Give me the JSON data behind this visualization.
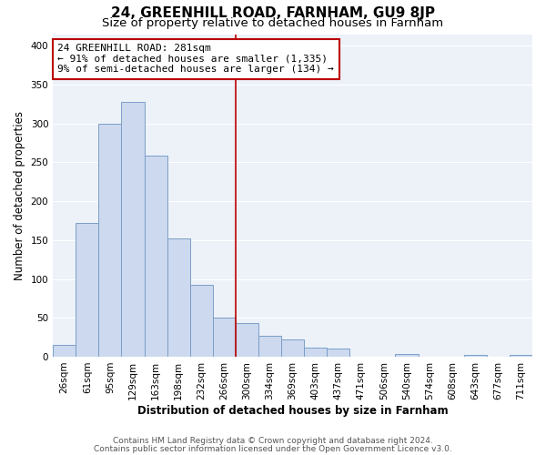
{
  "title": "24, GREENHILL ROAD, FARNHAM, GU9 8JP",
  "subtitle": "Size of property relative to detached houses in Farnham",
  "xlabel": "Distribution of detached houses by size in Farnham",
  "ylabel": "Number of detached properties",
  "bar_labels": [
    "26sqm",
    "61sqm",
    "95sqm",
    "129sqm",
    "163sqm",
    "198sqm",
    "232sqm",
    "266sqm",
    "300sqm",
    "334sqm",
    "369sqm",
    "403sqm",
    "437sqm",
    "471sqm",
    "506sqm",
    "540sqm",
    "574sqm",
    "608sqm",
    "643sqm",
    "677sqm",
    "711sqm"
  ],
  "bar_values": [
    15,
    172,
    300,
    328,
    259,
    152,
    93,
    50,
    43,
    27,
    22,
    12,
    11,
    0,
    0,
    3,
    0,
    0,
    2,
    0,
    2
  ],
  "bar_color": "#ccd9ee",
  "bar_edge_color": "#7b9ec8",
  "vline_x": 7.5,
  "vline_color": "#bb0000",
  "annotation_title": "24 GREENHILL ROAD: 281sqm",
  "annotation_line1": "← 91% of detached houses are smaller (1,335)",
  "annotation_line2": "9% of semi-detached houses are larger (134) →",
  "annotation_box_edgecolor": "#bb0000",
  "ylim": [
    0,
    415
  ],
  "yticks": [
    0,
    50,
    100,
    150,
    200,
    250,
    300,
    350,
    400
  ],
  "footer1": "Contains HM Land Registry data © Crown copyright and database right 2024.",
  "footer2": "Contains public sector information licensed under the Open Government Licence v3.0.",
  "bg_color": "#edf2f9",
  "grid_color": "#ffffff",
  "title_fontsize": 11,
  "subtitle_fontsize": 9.5,
  "axis_label_fontsize": 8.5,
  "tick_fontsize": 7.5,
  "annotation_fontsize": 8,
  "footer_fontsize": 6.5
}
